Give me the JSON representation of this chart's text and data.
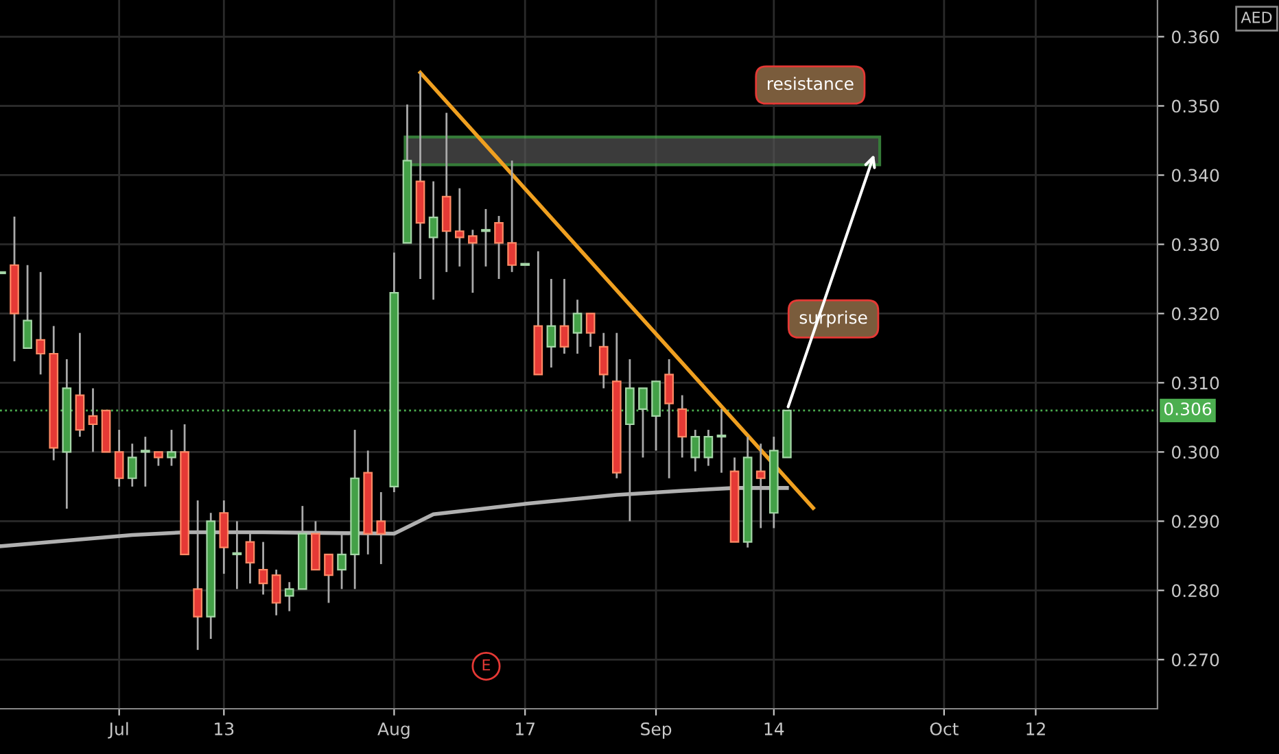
{
  "chart_data": {
    "type": "candlestick",
    "categories": [
      null,
      null,
      null,
      null,
      null,
      null,
      null,
      null,
      null,
      "Jul",
      null,
      null,
      null,
      null,
      null,
      null,
      null,
      "13",
      null,
      null,
      null,
      null,
      null,
      null,
      null,
      null,
      null,
      null,
      null,
      null,
      "Aug",
      null,
      null,
      null,
      null,
      null,
      null,
      null,
      null,
      null,
      "17",
      null,
      null,
      null,
      null,
      null,
      null,
      null,
      null,
      null,
      "Sep",
      null,
      null,
      null,
      null,
      null,
      null,
      null,
      null,
      "14",
      null,
      null,
      null,
      null,
      null,
      null,
      null,
      null,
      null,
      null,
      null,
      null,
      "Oct",
      null,
      null,
      null,
      null,
      null,
      null,
      "12",
      null,
      null,
      null,
      null,
      null,
      null,
      null,
      null,
      null
    ],
    "ohlc": [
      [
        0.3258,
        0.3258,
        0.3258,
        0.3258
      ],
      [
        0.327,
        0.334,
        0.3131,
        0.32
      ],
      [
        0.315,
        0.327,
        0.315,
        0.319
      ],
      [
        0.3162,
        0.326,
        0.3112,
        0.3142
      ],
      [
        0.3142,
        0.3182,
        0.2988,
        0.3006
      ],
      [
        0.3,
        0.3134,
        0.2918,
        0.3092
      ],
      [
        0.3082,
        0.3172,
        0.3022,
        0.3032
      ],
      [
        0.3052,
        0.3092,
        0.3,
        0.304
      ],
      [
        0.306,
        0.306,
        0.3,
        0.3
      ],
      [
        0.3,
        0.3032,
        0.295,
        0.2962
      ],
      [
        0.2962,
        0.3012,
        0.295,
        0.2992
      ],
      [
        0.3,
        0.3022,
        0.295,
        0.3
      ],
      [
        0.3,
        0.3,
        0.298,
        0.2992
      ],
      [
        0.2992,
        0.3032,
        0.298,
        0.3
      ],
      [
        0.3,
        0.304,
        0.2852,
        0.2852
      ],
      [
        0.2802,
        0.293,
        0.2714,
        0.2762
      ],
      [
        0.2762,
        0.2912,
        0.273,
        0.29
      ],
      [
        0.2912,
        0.293,
        0.2824,
        0.2862
      ],
      [
        0.2852,
        0.29,
        0.2802,
        0.2852
      ],
      [
        0.287,
        0.2882,
        0.281,
        0.284
      ],
      [
        0.283,
        0.287,
        0.2794,
        0.281
      ],
      [
        0.2822,
        0.283,
        0.2764,
        0.2782
      ],
      [
        0.2792,
        0.2812,
        0.277,
        0.2802
      ],
      [
        0.2802,
        0.2922,
        0.2802,
        0.2882
      ],
      [
        0.2882,
        0.29,
        0.283,
        0.283
      ],
      [
        0.2852,
        0.2852,
        0.2782,
        0.2822
      ],
      [
        0.283,
        0.2882,
        0.2802,
        0.2852
      ],
      [
        0.2852,
        0.3032,
        0.2802,
        0.2962
      ],
      [
        0.297,
        0.3002,
        0.2852,
        0.2882
      ],
      [
        0.29,
        0.2942,
        0.2838,
        0.2882
      ],
      [
        0.295,
        0.3288,
        0.2942,
        0.323
      ],
      [
        0.3302,
        0.3502,
        0.3302,
        0.3421
      ],
      [
        0.3391,
        0.3548,
        0.325,
        0.3331
      ],
      [
        0.331,
        0.3391,
        0.322,
        0.3339
      ],
      [
        0.3369,
        0.349,
        0.326,
        0.3319
      ],
      [
        0.3319,
        0.3381,
        0.3268,
        0.331
      ],
      [
        0.3312,
        0.3321,
        0.323,
        0.3302
      ],
      [
        0.3319,
        0.3351,
        0.3268,
        0.3319
      ],
      [
        0.3331,
        0.3341,
        0.325,
        0.3302
      ],
      [
        0.3302,
        0.3421,
        0.326,
        0.327
      ],
      [
        0.327,
        0.327,
        0.327,
        0.327
      ],
      [
        0.3182,
        0.329,
        0.3112,
        0.3112
      ],
      [
        0.3152,
        0.325,
        0.3122,
        0.3182
      ],
      [
        0.3182,
        0.325,
        0.3142,
        0.3152
      ],
      [
        0.3172,
        0.322,
        0.3142,
        0.32
      ],
      [
        0.32,
        0.32,
        0.3152,
        0.3172
      ],
      [
        0.3152,
        0.3172,
        0.3092,
        0.3112
      ],
      [
        0.3102,
        0.3172,
        0.2962,
        0.297
      ],
      [
        0.304,
        0.3134,
        0.29,
        0.3092
      ],
      [
        0.3062,
        0.3092,
        0.2992,
        0.3092
      ],
      [
        0.3052,
        0.3102,
        0.3002,
        0.3102
      ],
      [
        0.3112,
        0.3134,
        0.2962,
        0.307
      ],
      [
        0.3062,
        0.3082,
        0.2992,
        0.3022
      ],
      [
        0.2992,
        0.3032,
        0.2972,
        0.3022
      ],
      [
        0.2992,
        0.3032,
        0.298,
        0.3022
      ],
      [
        0.3022,
        0.3062,
        0.297,
        0.3022
      ],
      [
        0.2972,
        0.2992,
        0.287,
        0.287
      ],
      [
        0.287,
        0.3022,
        0.2862,
        0.2992
      ],
      [
        0.2972,
        0.3012,
        0.289,
        0.2962
      ],
      [
        0.2912,
        0.3022,
        0.289,
        0.3002
      ],
      [
        0.2992,
        0.306,
        0.2992,
        0.306
      ],
      null,
      null,
      null,
      null,
      null,
      null,
      null,
      null,
      null,
      null,
      null,
      null,
      null,
      null,
      null,
      null,
      null,
      null,
      null,
      null,
      null,
      null,
      null,
      null,
      null,
      null,
      null,
      null
    ],
    "series": [
      {
        "type": "line",
        "color": "#b0b0b0",
        "values": [
          0.2864,
          null,
          null,
          null,
          null,
          null,
          null,
          null,
          null,
          null,
          0.288,
          null,
          null,
          null,
          0.2884,
          null,
          null,
          null,
          null,
          null,
          0.2884,
          null,
          null,
          null,
          null,
          null,
          null,
          null,
          null,
          null,
          0.2882,
          null,
          null,
          0.291,
          null,
          null,
          null,
          null,
          null,
          null,
          0.2925,
          null,
          null,
          null,
          null,
          null,
          null,
          0.2938,
          null,
          null,
          null,
          null,
          0.2944,
          null,
          null,
          null,
          0.2948,
          null,
          null,
          null,
          0.2948,
          null,
          null,
          null,
          null,
          null,
          null,
          null,
          null,
          null,
          null,
          null,
          null,
          null,
          null,
          null,
          null,
          null,
          null,
          null,
          null,
          null,
          null,
          null,
          null,
          null,
          null,
          null,
          null
        ]
      },
      {
        "type": "line",
        "color": "#f0a020",
        "values": [
          null,
          null,
          null,
          null,
          null,
          null,
          null,
          null,
          null,
          null,
          null,
          null,
          null,
          null,
          null,
          null,
          null,
          null,
          null,
          null,
          null,
          null,
          null,
          null,
          null,
          null,
          null,
          null,
          null,
          null,
          null,
          null,
          0.3548,
          null,
          null,
          null,
          null,
          null,
          null,
          null,
          null,
          null,
          null,
          null,
          null,
          null,
          null,
          null,
          null,
          null,
          null,
          null,
          null,
          null,
          null,
          null,
          null,
          null,
          null,
          null,
          null,
          null,
          0.2919,
          null,
          null,
          null,
          null,
          null,
          null,
          null,
          null,
          null,
          null,
          null,
          null,
          null,
          null,
          null,
          null,
          null,
          null,
          null,
          null,
          null,
          null,
          null,
          null,
          null,
          null
        ]
      }
    ],
    "ylim": [
      0.2629,
      0.3653
    ],
    "yticks": [
      {
        "value": 0.27,
        "label": "0.270"
      },
      {
        "value": 0.28,
        "label": "0.280"
      },
      {
        "value": 0.29,
        "label": "0.290"
      },
      {
        "value": 0.3,
        "label": "0.300"
      },
      {
        "value": 0.31,
        "label": "0.310"
      },
      {
        "value": 0.32,
        "label": "0.320"
      },
      {
        "value": 0.33,
        "label": "0.330"
      },
      {
        "value": 0.34,
        "label": "0.340"
      },
      {
        "value": 0.35,
        "label": "0.350"
      },
      {
        "value": 0.36,
        "label": "0.360"
      }
    ],
    "ref_lines": [
      {
        "axis": "y",
        "value": 0.306,
        "label": "0.306",
        "color": "#4caf50",
        "line_style": "dotted"
      }
    ],
    "bands": [
      {
        "axis": "y",
        "from": 0.3415,
        "to": 0.3455,
        "color": "#4caf50"
      }
    ],
    "annotations": [
      "resistance",
      "surprise",
      "E",
      "AED"
    ],
    "grid": true
  }
}
